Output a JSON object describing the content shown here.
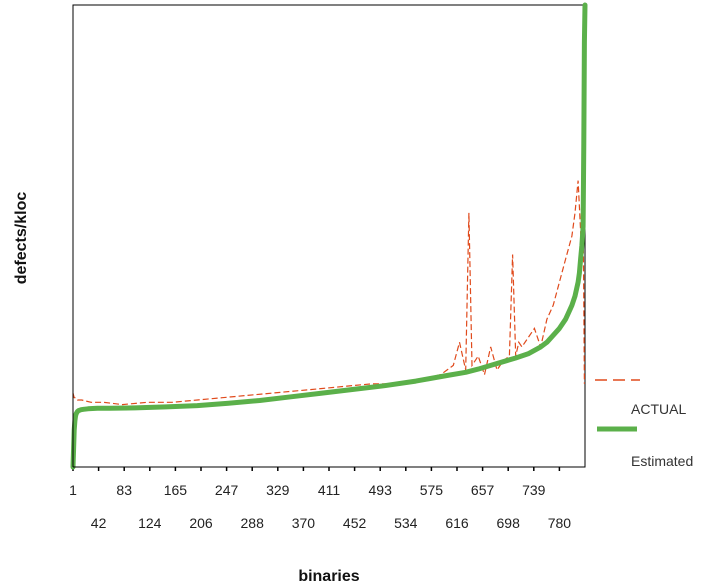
{
  "chart_data": {
    "type": "line",
    "xlabel": "binaries",
    "ylabel": "defects/kloc",
    "x_tick_labels": [
      "1",
      "42",
      "83",
      "124",
      "165",
      "206",
      "247",
      "288",
      "329",
      "370",
      "411",
      "452",
      "493",
      "534",
      "575",
      "616",
      "657",
      "698",
      "739",
      "780"
    ],
    "x_tick_values": [
      1,
      42,
      83,
      124,
      165,
      206,
      247,
      288,
      329,
      370,
      411,
      452,
      493,
      534,
      575,
      616,
      657,
      698,
      739,
      780
    ],
    "xlim": [
      1,
      821
    ],
    "ylim": [
      0,
      1
    ],
    "grid": false,
    "legend_position": "right",
    "legend_order": [
      "ACTUAL",
      "Estimated"
    ],
    "series": [
      {
        "name": "ACTUAL",
        "style": "dashed",
        "color": "#e04a1c",
        "x": [
          1,
          3,
          5,
          8,
          15,
          30,
          50,
          80,
          120,
          160,
          200,
          240,
          280,
          320,
          360,
          400,
          440,
          480,
          520,
          560,
          590,
          600,
          610,
          620,
          630,
          635,
          640,
          650,
          660,
          670,
          680,
          690,
          700,
          705,
          710,
          715,
          720,
          730,
          740,
          750,
          760,
          770,
          780,
          790,
          800,
          805,
          810,
          815,
          818,
          820
        ],
        "y": [
          0.16,
          0.15,
          0.15,
          0.145,
          0.145,
          0.14,
          0.14,
          0.135,
          0.14,
          0.14,
          0.145,
          0.15,
          0.155,
          0.16,
          0.165,
          0.17,
          0.175,
          0.18,
          0.18,
          0.19,
          0.2,
          0.21,
          0.22,
          0.27,
          0.21,
          0.55,
          0.22,
          0.24,
          0.2,
          0.26,
          0.21,
          0.23,
          0.24,
          0.46,
          0.24,
          0.27,
          0.26,
          0.28,
          0.3,
          0.26,
          0.32,
          0.35,
          0.4,
          0.45,
          0.5,
          0.55,
          0.62,
          0.48,
          0.56,
          0.18
        ]
      },
      {
        "name": "Estimated",
        "style": "solid",
        "color": "#5bb04a",
        "x": [
          1,
          2,
          3,
          4,
          5,
          6,
          8,
          10,
          14,
          18,
          25,
          40,
          60,
          100,
          150,
          200,
          250,
          300,
          350,
          400,
          450,
          500,
          550,
          600,
          630,
          650,
          670,
          690,
          710,
          730,
          750,
          760,
          770,
          780,
          790,
          795,
          800,
          805,
          810,
          812,
          814,
          816,
          818,
          819,
          820,
          821
        ],
        "y": [
          0.0,
          0.04,
          0.08,
          0.1,
          0.11,
          0.115,
          0.12,
          0.122,
          0.124,
          0.125,
          0.126,
          0.127,
          0.127,
          0.128,
          0.13,
          0.133,
          0.138,
          0.144,
          0.152,
          0.16,
          0.168,
          0.176,
          0.186,
          0.198,
          0.205,
          0.212,
          0.22,
          0.228,
          0.236,
          0.245,
          0.26,
          0.27,
          0.285,
          0.3,
          0.32,
          0.335,
          0.35,
          0.37,
          0.4,
          0.42,
          0.45,
          0.48,
          0.52,
          0.7,
          0.92,
          1.0
        ]
      }
    ]
  }
}
